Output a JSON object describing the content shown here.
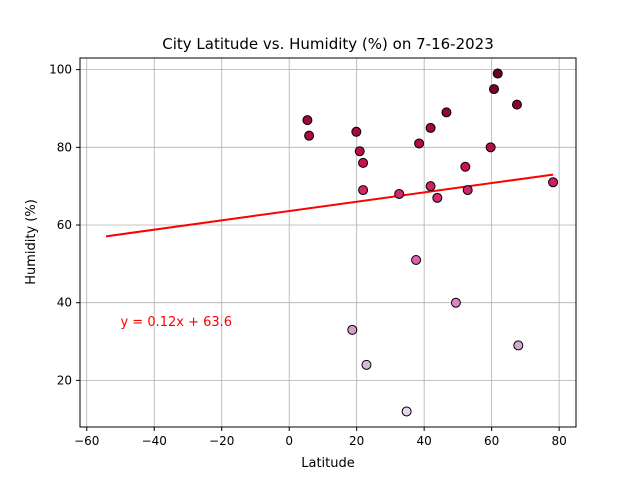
{
  "chart_data": {
    "type": "scatter",
    "title": "City Latitude vs. Humidity (%) on 7-16-2023",
    "xlabel": "Latitude",
    "ylabel": "Humidity (%)",
    "xlim": [
      -62,
      85
    ],
    "ylim": [
      8,
      103
    ],
    "xticks": [
      -60,
      -40,
      -20,
      0,
      20,
      40,
      60,
      80
    ],
    "yticks": [
      20,
      40,
      60,
      80,
      100
    ],
    "grid": true,
    "points": [
      {
        "x": 5.4,
        "y": 87
      },
      {
        "x": 5.9,
        "y": 83
      },
      {
        "x": 18.7,
        "y": 33
      },
      {
        "x": 19.9,
        "y": 84
      },
      {
        "x": 20.9,
        "y": 79
      },
      {
        "x": 21.9,
        "y": 76
      },
      {
        "x": 21.9,
        "y": 69
      },
      {
        "x": 22.9,
        "y": 24
      },
      {
        "x": 32.6,
        "y": 68
      },
      {
        "x": 34.8,
        "y": 12
      },
      {
        "x": 37.6,
        "y": 51
      },
      {
        "x": 38.5,
        "y": 81
      },
      {
        "x": 41.9,
        "y": 85
      },
      {
        "x": 41.9,
        "y": 70
      },
      {
        "x": 43.9,
        "y": 67
      },
      {
        "x": 46.6,
        "y": 89
      },
      {
        "x": 49.4,
        "y": 40
      },
      {
        "x": 52.2,
        "y": 75
      },
      {
        "x": 52.9,
        "y": 69
      },
      {
        "x": 59.7,
        "y": 80
      },
      {
        "x": 60.7,
        "y": 95
      },
      {
        "x": 61.8,
        "y": 99
      },
      {
        "x": 67.5,
        "y": 91
      },
      {
        "x": 67.9,
        "y": 29
      },
      {
        "x": 78.2,
        "y": 71
      }
    ],
    "regression": {
      "slope": 0.12,
      "intercept": 63.6,
      "x_range": [
        -54.3,
        78.2
      ],
      "color": "#ff0000"
    },
    "annotation": {
      "text": "y = 0.12x + 63.6",
      "x": -50,
      "y": 35,
      "color": "#ff0000"
    },
    "colormap": "PuRd",
    "marker_edge_color": "#000000"
  }
}
